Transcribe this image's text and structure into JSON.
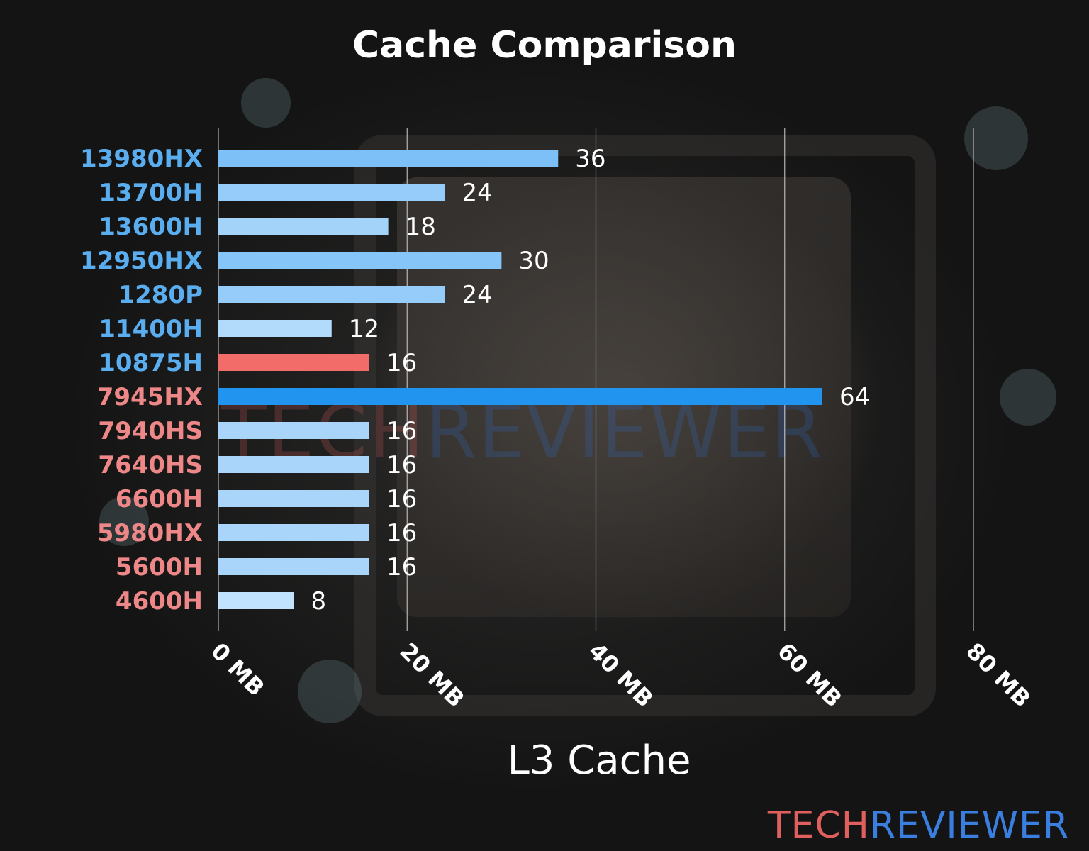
{
  "chart_data": {
    "type": "bar",
    "orientation": "horizontal",
    "title": "Cache Comparison",
    "xlabel": "L3 Cache",
    "ylabel": "",
    "xlim": [
      0,
      80
    ],
    "x_ticks": [
      "0 MB",
      "20 MB",
      "40 MB",
      "60 MB",
      "80 MB"
    ],
    "x_tick_values": [
      0,
      20,
      40,
      60,
      80
    ],
    "grid": true,
    "categories": [
      "13980HX",
      "13700H",
      "13600H",
      "12950HX",
      "1280P",
      "11400H",
      "10875H",
      "7945HX",
      "7940HS",
      "7640HS",
      "6600H",
      "5980HX",
      "5600H",
      "4600H"
    ],
    "values": [
      36,
      24,
      18,
      30,
      24,
      12,
      16,
      64,
      16,
      16,
      16,
      16,
      16,
      8
    ],
    "value_labels": [
      "36",
      "24",
      "18",
      "30",
      "24",
      "12",
      "16",
      "64",
      "16",
      "16",
      "16",
      "16",
      "16",
      "8"
    ],
    "category_colors": [
      "#5aaef0",
      "#5aaef0",
      "#5aaef0",
      "#5aaef0",
      "#5aaef0",
      "#5aaef0",
      "#5aaef0",
      "#ee8888",
      "#ee8888",
      "#ee8888",
      "#ee8888",
      "#ee8888",
      "#ee8888",
      "#ee8888"
    ],
    "bar_colors": [
      "#7cc0f7",
      "#96ccf9",
      "#a4d3fa",
      "#86c5f8",
      "#96ccf9",
      "#b2dafb",
      "#f26c6a",
      "#2094ee",
      "#a9d5fb",
      "#a9d5fb",
      "#a9d5fb",
      "#a9d5fb",
      "#a9d5fb",
      "#c2e3fd"
    ]
  },
  "colors": {
    "text": "#ffffff",
    "gridline": "#cfcfcf",
    "brand_tech": "#e06060",
    "brand_reviewer": "#2f6fd0"
  },
  "branding": {
    "tech": "TECH",
    "reviewer": "REVIEWER"
  }
}
